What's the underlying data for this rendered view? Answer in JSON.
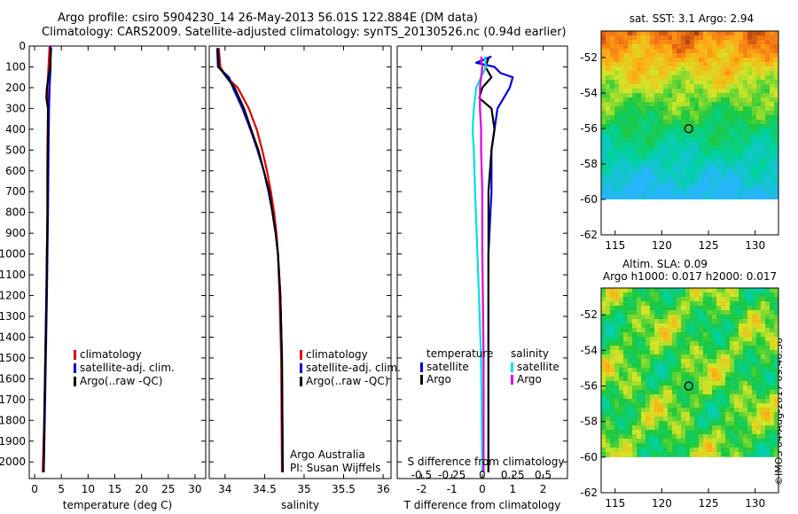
{
  "header": {
    "line1": "Argo profile: csiro 5904230_14 26-May-2013 56.01S 122.884E (DM data)",
    "line2": "Climatology: CARS2009. Satellite-adjusted climatology: synTS_20130526.nc (0.94d earlier)"
  },
  "colors": {
    "climatology": "#e00000",
    "satellite": "#0000e0",
    "argo": "#000000",
    "sat_salinity": "#00e0e0",
    "argo_salinity": "#e000e0"
  },
  "chart_data": [
    {
      "id": "temperature",
      "type": "line",
      "xlabel": "temperature (deg C)",
      "ylabel": "",
      "xlim": [
        -1,
        32
      ],
      "ylim": [
        2080,
        0
      ],
      "xticks": [
        0,
        5,
        10,
        15,
        20,
        25,
        30
      ],
      "xtick_labels": [
        "0",
        "5",
        "10",
        "15",
        "20",
        "25",
        "30"
      ],
      "yticks": [
        0,
        100,
        200,
        300,
        400,
        500,
        600,
        700,
        800,
        900,
        1000,
        1100,
        1200,
        1300,
        1400,
        1500,
        1600,
        1700,
        1800,
        1900,
        2000
      ],
      "ytick_labels": [
        "0",
        "100",
        "200",
        "300",
        "400",
        "500",
        "600",
        "700",
        "800",
        "900",
        "1000",
        "1100",
        "1200",
        "1300",
        "1400",
        "1500",
        "1600",
        "1700",
        "1800",
        "1900",
        "2000"
      ],
      "legend": [
        "climatology",
        "satellite-adj. clim.",
        "Argo(..raw -QC)"
      ],
      "series": [
        {
          "name": "climatology",
          "color": "#e00000",
          "depth": [
            0,
            100,
            200,
            300,
            500,
            800,
            1000,
            1200,
            1500,
            1800,
            2050
          ],
          "values": [
            2.8,
            2.6,
            2.4,
            2.5,
            2.4,
            2.4,
            2.3,
            2.2,
            2.0,
            1.8,
            1.5
          ]
        },
        {
          "name": "satellite-adj. clim.",
          "color": "#0000e0",
          "depth": [
            0,
            100,
            200,
            300,
            500,
            800,
            1000,
            1200,
            1500,
            1800,
            2050
          ],
          "values": [
            3.0,
            3.0,
            2.8,
            2.7,
            2.6,
            2.5,
            2.4,
            2.3,
            2.1,
            1.9,
            1.7
          ]
        },
        {
          "name": "Argo(..raw -QC)",
          "color": "#000000",
          "depth": [
            10,
            50,
            100,
            150,
            200,
            250,
            300,
            400,
            600,
            800,
            1000,
            1200,
            1500,
            1800,
            2050
          ],
          "values": [
            3.1,
            3.0,
            2.9,
            2.6,
            2.3,
            2.2,
            2.5,
            2.5,
            2.4,
            2.4,
            2.3,
            2.2,
            2.0,
            1.8,
            1.7
          ]
        }
      ]
    },
    {
      "id": "salinity",
      "type": "line",
      "xlabel": "salinity",
      "ylabel": "",
      "xlim": [
        33.8,
        36.1
      ],
      "ylim": [
        2080,
        0
      ],
      "xticks": [
        34,
        34.5,
        35,
        35.5,
        36
      ],
      "xtick_labels": [
        "34",
        "34.5",
        "35",
        "35.5",
        "36"
      ],
      "legend": [
        "climatology",
        "satellite-adj. clim.",
        "Argo(..raw -QC)"
      ],
      "annotation": [
        "Argo Australia",
        "PI: Susan Wijffels"
      ],
      "series": [
        {
          "name": "climatology",
          "color": "#e00000",
          "depth": [
            10,
            100,
            150,
            200,
            300,
            400,
            500,
            600,
            700,
            800,
            900,
            1000,
            1200,
            1500,
            2050
          ],
          "values": [
            33.92,
            33.94,
            34.02,
            34.16,
            34.3,
            34.4,
            34.47,
            34.53,
            34.58,
            34.62,
            34.65,
            34.67,
            34.69,
            34.71,
            34.72
          ]
        },
        {
          "name": "satellite-adj. clim.",
          "color": "#0000e0",
          "depth": [
            10,
            100,
            150,
            200,
            300,
            400,
            500,
            600,
            700,
            800,
            900,
            1000,
            1200,
            1500,
            2050
          ],
          "values": [
            33.9,
            33.91,
            34.05,
            34.1,
            34.22,
            34.32,
            34.41,
            34.49,
            34.55,
            34.6,
            34.64,
            34.67,
            34.7,
            34.72,
            34.73
          ]
        },
        {
          "name": "Argo(..raw -QC)",
          "color": "#000000",
          "depth": [
            10,
            100,
            150,
            200,
            300,
            400,
            500,
            600,
            700,
            800,
            900,
            1000,
            1200,
            1500,
            2050
          ],
          "values": [
            33.91,
            33.92,
            34.02,
            34.12,
            34.24,
            34.33,
            34.42,
            34.49,
            34.56,
            34.6,
            34.64,
            34.67,
            34.7,
            34.72,
            34.73
          ]
        }
      ]
    },
    {
      "id": "difference",
      "type": "line",
      "xlabel": "T difference from climatology",
      "xlabel_top": "S difference from climatology",
      "xlim": [
        -2.8,
        2.8
      ],
      "ylim": [
        2080,
        0
      ],
      "xticks": [
        -2,
        -1,
        0,
        1,
        2
      ],
      "xtick_labels": [
        "-2",
        "-1",
        "0",
        "1",
        "2"
      ],
      "s_xticks": [
        -0.5,
        -0.25,
        0,
        0.25,
        0.5
      ],
      "s_xtick_labels": [
        "-0.5",
        "-0.25",
        "0",
        "0.25",
        "0.5"
      ],
      "legend_headers": [
        "temperature",
        "salinity"
      ],
      "legend": [
        "satellite",
        "Argo",
        "satellite",
        "Argo"
      ],
      "series": [
        {
          "name": "temperature satellite",
          "color": "#0000e0",
          "depth": [
            50,
            80,
            100,
            130,
            150,
            200,
            250,
            300,
            400,
            500,
            700,
            1000,
            1500,
            2050
          ],
          "values": [
            0.3,
            -0.2,
            0.4,
            0.6,
            1.0,
            0.9,
            0.7,
            0.5,
            0.4,
            0.3,
            0.3,
            0.2,
            0.2,
            0.2
          ]
        },
        {
          "name": "temperature Argo",
          "color": "#000000",
          "depth": [
            60,
            100,
            150,
            200,
            250,
            300,
            400,
            500,
            700,
            1000,
            1500,
            2050
          ],
          "values": [
            0.2,
            0.1,
            0.3,
            0.0,
            -0.1,
            0.3,
            0.4,
            0.3,
            0.2,
            0.2,
            0.2,
            0.2
          ]
        },
        {
          "name": "salinity satellite",
          "color": "#00e0e0",
          "depth": [
            50,
            100,
            200,
            300,
            400,
            500,
            700,
            1000,
            1500,
            2050
          ],
          "values": [
            0.02,
            0.03,
            -0.05,
            -0.07,
            -0.08,
            -0.07,
            -0.06,
            -0.04,
            -0.01,
            0.0
          ]
        },
        {
          "name": "salinity Argo",
          "color": "#e000e0",
          "depth": [
            50,
            100,
            200,
            300,
            400,
            500,
            700,
            1000,
            1500,
            2050
          ],
          "values": [
            -0.01,
            0.0,
            -0.02,
            -0.02,
            -0.01,
            -0.01,
            0.0,
            0.0,
            0.01,
            0.01
          ]
        }
      ]
    },
    {
      "id": "sst_map",
      "type": "heatmap",
      "title": "sat. SST: 3.1  Argo: 2.94",
      "xlim": [
        113.5,
        132.5
      ],
      "ylim": [
        -62,
        -50.5
      ],
      "xticks": [
        115,
        120,
        125,
        130
      ],
      "xtick_labels": [
        "115",
        "120",
        "125",
        "130"
      ],
      "yticks": [
        -52,
        -54,
        -56,
        -58,
        -60,
        -62
      ],
      "ytick_labels": [
        "-52",
        "-54",
        "-56",
        "-58",
        "-60",
        "-62"
      ],
      "marker": {
        "lon": 122.884,
        "lat": -56.01
      }
    },
    {
      "id": "sla_map",
      "type": "heatmap",
      "title": "Altim. SLA: 0.09",
      "subtitle": "Argo h1000: 0.017 h2000: 0.017",
      "xlim": [
        113.5,
        132.5
      ],
      "ylim": [
        -62,
        -50.5
      ],
      "xticks": [
        115,
        120,
        125,
        130
      ],
      "xtick_labels": [
        "115",
        "120",
        "125",
        "130"
      ],
      "yticks": [
        -52,
        -54,
        -56,
        -58,
        -60,
        -62
      ],
      "ytick_labels": [
        "-52",
        "-54",
        "-56",
        "-58",
        "-60",
        "-62"
      ],
      "marker": {
        "lon": 122.884,
        "lat": -56.01
      }
    }
  ],
  "credit": "©IMOS 04-Aug-2017 09:46:36"
}
